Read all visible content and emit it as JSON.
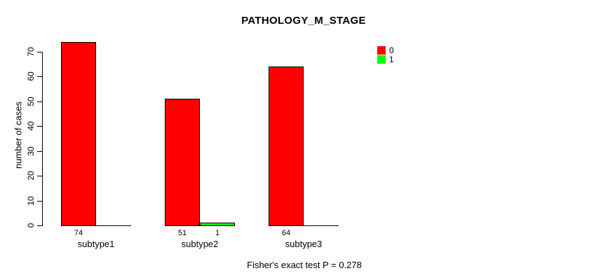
{
  "chart_data": {
    "type": "bar",
    "title": "PATHOLOGY_M_STAGE",
    "xlabel": "",
    "ylabel": "number of cases",
    "categories": [
      "subtype1",
      "subtype2",
      "subtype3"
    ],
    "series": [
      {
        "name": "0",
        "color": "#FF0000",
        "values": [
          74,
          51,
          64
        ]
      },
      {
        "name": "1",
        "color": "#00FF00",
        "values": [
          0,
          1,
          0
        ]
      }
    ],
    "bar_value_labels": [
      [
        "74",
        "",
        "64"
      ],
      [
        "",
        "1",
        ""
      ]
    ],
    "shown_counts_note": "counts 74, 51, 1, 64 printed under bars; zero bars hidden",
    "ylim": [
      0,
      70
    ],
    "yticks": [
      0,
      10,
      20,
      30,
      40,
      50,
      60,
      70
    ],
    "grid": false,
    "legend_position": "top-right",
    "legend": [
      {
        "label": "0",
        "color": "#FF0000"
      },
      {
        "label": "1",
        "color": "#00FF00"
      }
    ]
  },
  "footer": {
    "caption": "Fisher's exact test P = 0.278"
  }
}
